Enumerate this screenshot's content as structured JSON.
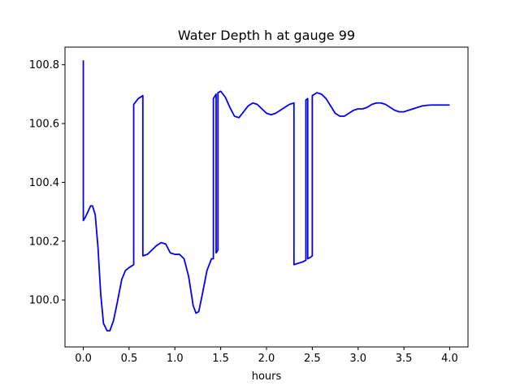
{
  "chart_data": {
    "type": "line",
    "title": "Water Depth h at gauge 99",
    "xlabel": "hours",
    "ylabel": "",
    "xlim": [
      -0.2,
      4.2
    ],
    "ylim": [
      99.84,
      100.86
    ],
    "xticks": [
      0.0,
      0.5,
      1.0,
      1.5,
      2.0,
      2.5,
      3.0,
      3.5,
      4.0
    ],
    "xtick_labels": [
      "0.0",
      "0.5",
      "1.0",
      "1.5",
      "2.0",
      "2.5",
      "3.0",
      "3.5",
      "4.0"
    ],
    "yticks": [
      100.0,
      100.2,
      100.4,
      100.6,
      100.8
    ],
    "ytick_labels": [
      "100.0",
      "100.2",
      "100.4",
      "100.6",
      "100.8"
    ],
    "grid": false,
    "line_color": "#0000ff",
    "series": [
      {
        "x": [
          0.0,
          0.0,
          0.02,
          0.05,
          0.08,
          0.1,
          0.13,
          0.16,
          0.19,
          0.22,
          0.26,
          0.29,
          0.33,
          0.37,
          0.42,
          0.46,
          0.5,
          0.55,
          0.55,
          0.6,
          0.65,
          0.65,
          0.7,
          0.75,
          0.8,
          0.85,
          0.9,
          0.95,
          1.0,
          1.05,
          1.1,
          1.15,
          1.2,
          1.23,
          1.26,
          1.3,
          1.35,
          1.4,
          1.42,
          1.42,
          1.45,
          1.45,
          1.46,
          1.47,
          1.47,
          1.5,
          1.55,
          1.6,
          1.65,
          1.7,
          1.75,
          1.8,
          1.85,
          1.9,
          1.95,
          2.0,
          2.05,
          2.1,
          2.15,
          2.2,
          2.25,
          2.3,
          2.3,
          2.35,
          2.4,
          2.43,
          2.43,
          2.45,
          2.45,
          2.48,
          2.5,
          2.5,
          2.55,
          2.6,
          2.65,
          2.7,
          2.75,
          2.8,
          2.85,
          2.9,
          2.95,
          3.0,
          3.05,
          3.1,
          3.15,
          3.2,
          3.25,
          3.3,
          3.35,
          3.4,
          3.45,
          3.5,
          3.55,
          3.6,
          3.65,
          3.7,
          3.75,
          3.8,
          3.85,
          3.9,
          3.95,
          4.0
        ],
        "y": [
          100.815,
          100.27,
          100.28,
          100.3,
          100.32,
          100.32,
          100.29,
          100.18,
          100.02,
          99.92,
          99.895,
          99.895,
          99.93,
          99.99,
          100.07,
          100.1,
          100.11,
          100.12,
          100.665,
          100.685,
          100.695,
          100.15,
          100.155,
          100.17,
          100.185,
          100.195,
          100.19,
          100.16,
          100.155,
          100.155,
          100.14,
          100.08,
          99.98,
          99.955,
          99.96,
          100.02,
          100.1,
          100.14,
          100.14,
          100.685,
          100.7,
          100.16,
          100.165,
          100.17,
          100.705,
          100.71,
          100.69,
          100.655,
          100.625,
          100.62,
          100.64,
          100.66,
          100.67,
          100.665,
          100.65,
          100.635,
          100.63,
          100.635,
          100.645,
          100.655,
          100.665,
          100.67,
          100.12,
          100.125,
          100.13,
          100.135,
          100.68,
          100.685,
          100.14,
          100.145,
          100.15,
          100.695,
          100.705,
          100.7,
          100.685,
          100.66,
          100.635,
          100.625,
          100.625,
          100.635,
          100.645,
          100.65,
          100.65,
          100.655,
          100.665,
          100.67,
          100.67,
          100.665,
          100.655,
          100.645,
          100.64,
          100.64,
          100.645,
          100.65,
          100.655,
          100.66,
          100.662,
          100.663,
          100.663,
          100.663,
          100.663,
          100.663
        ]
      }
    ]
  }
}
